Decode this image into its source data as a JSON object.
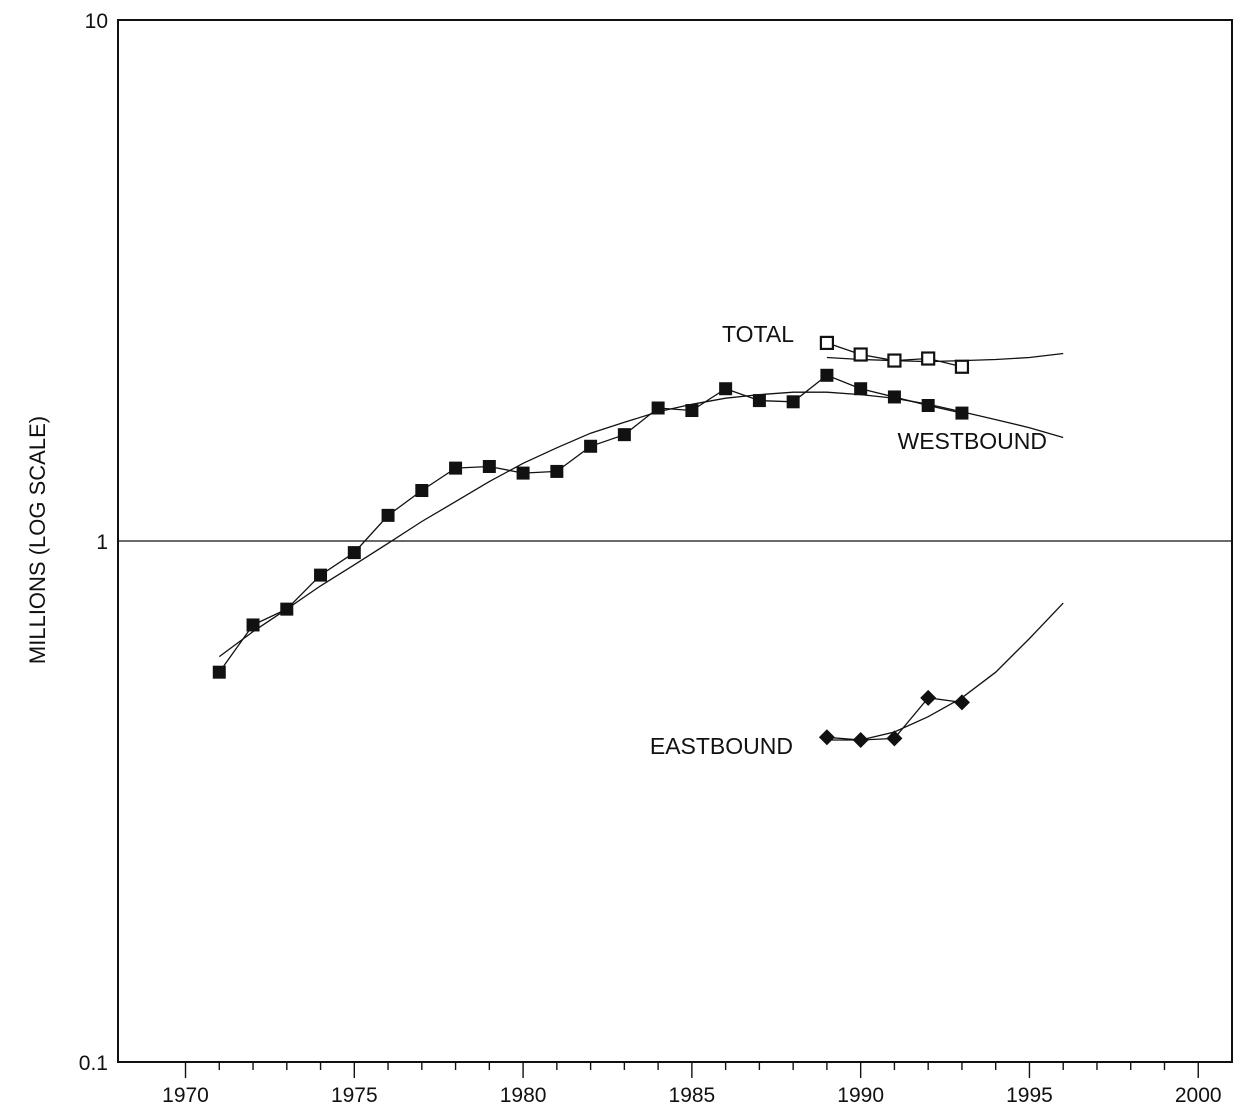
{
  "chart_data": {
    "type": "line",
    "title": "",
    "xlabel": "",
    "ylabel": "MILLIONS (LOG SCALE)",
    "yscale": "log",
    "xlim": [
      1970,
      2000
    ],
    "ylim": [
      0.1,
      10
    ],
    "x_ticks": [
      1970,
      1975,
      1980,
      1985,
      1990,
      1995,
      2000
    ],
    "x_tick_labels": [
      "1970",
      "1975",
      "1980",
      "1985",
      "1990",
      "1995",
      "2000"
    ],
    "y_ticks": [
      0.1,
      1,
      10
    ],
    "y_tick_labels": [
      "0.1",
      "1",
      "10"
    ],
    "reference_line": 1,
    "series": [
      {
        "name": "TOTAL",
        "marker": "open-square",
        "x": [
          1989,
          1990,
          1991,
          1992,
          1993
        ],
        "values": [
          2.4,
          2.28,
          2.22,
          2.24,
          2.16
        ],
        "trend": {
          "x": [
            1989,
            1990,
            1991,
            1992,
            1993,
            1994,
            1995,
            1996
          ],
          "values": [
            2.25,
            2.23,
            2.22,
            2.21,
            2.22,
            2.23,
            2.25,
            2.29
          ]
        }
      },
      {
        "name": "WESTBOUND",
        "marker": "filled-square",
        "x": [
          1971,
          1972,
          1973,
          1974,
          1975,
          1976,
          1977,
          1978,
          1979,
          1980,
          1981,
          1982,
          1983,
          1984,
          1985,
          1986,
          1987,
          1988,
          1989,
          1990,
          1991,
          1992,
          1993
        ],
        "values": [
          0.56,
          0.69,
          0.74,
          0.86,
          0.95,
          1.12,
          1.25,
          1.38,
          1.39,
          1.35,
          1.36,
          1.52,
          1.6,
          1.8,
          1.78,
          1.96,
          1.86,
          1.85,
          2.08,
          1.96,
          1.89,
          1.82,
          1.76
        ],
        "trend": {
          "x": [
            1971,
            1972,
            1973,
            1974,
            1975,
            1976,
            1977,
            1978,
            1979,
            1980,
            1981,
            1982,
            1983,
            1984,
            1985,
            1986,
            1987,
            1988,
            1989,
            1990,
            1991,
            1992,
            1993,
            1994,
            1995,
            1996
          ],
          "values": [
            0.6,
            0.67,
            0.74,
            0.82,
            0.9,
            0.99,
            1.09,
            1.19,
            1.3,
            1.41,
            1.51,
            1.61,
            1.69,
            1.77,
            1.83,
            1.88,
            1.91,
            1.93,
            1.93,
            1.91,
            1.88,
            1.83,
            1.77,
            1.71,
            1.65,
            1.58
          ]
        }
      },
      {
        "name": "EASTBOUND",
        "marker": "filled-diamond",
        "x": [
          1989,
          1990,
          1991,
          1992,
          1993
        ],
        "values": [
          0.42,
          0.415,
          0.418,
          0.5,
          0.49
        ],
        "trend": {
          "x": [
            1989,
            1990,
            1991,
            1992,
            1993,
            1994,
            1995,
            1996
          ],
          "values": [
            0.415,
            0.415,
            0.43,
            0.46,
            0.5,
            0.56,
            0.65,
            0.76
          ]
        }
      }
    ],
    "annotations": [
      {
        "text": "TOTAL",
        "series": "TOTAL"
      },
      {
        "text": "WESTBOUND",
        "series": "WESTBOUND"
      },
      {
        "text": "EASTBOUND",
        "series": "EASTBOUND"
      }
    ],
    "colors": {
      "ink": "#111111",
      "background": "#ffffff"
    }
  }
}
